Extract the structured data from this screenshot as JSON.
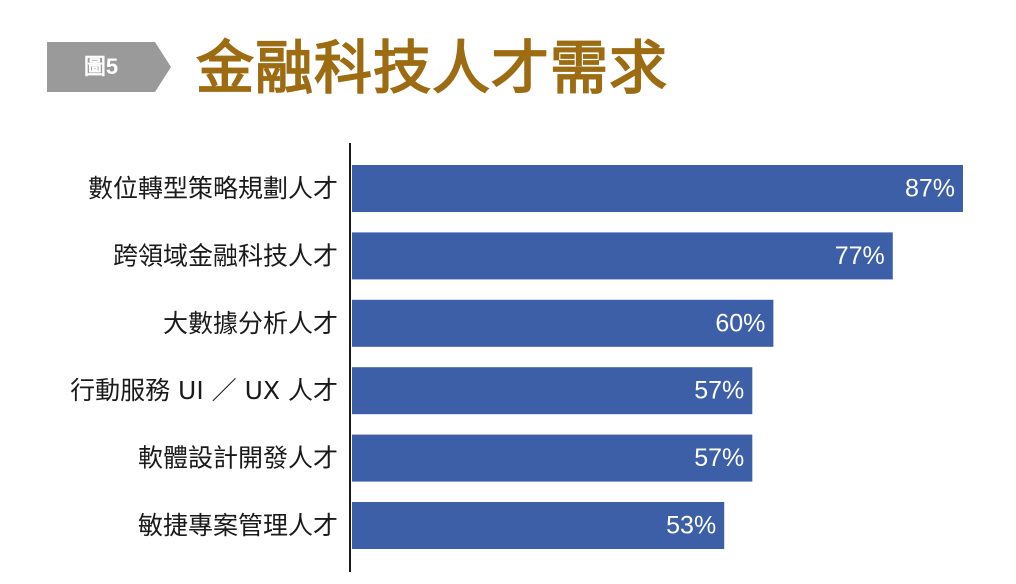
{
  "figure": {
    "badge_label": "圖5",
    "title": "金融科技人才需求",
    "colors": {
      "badge": "#9a9a9a",
      "title": "#9c6b12",
      "bar": "#3c5fa8",
      "axis": "#1a1a1a",
      "value_text": "#ffffff"
    }
  },
  "chart_data": {
    "type": "bar",
    "orientation": "horizontal",
    "title": "金融科技人才需求",
    "xlabel": "",
    "ylabel": "",
    "unit": "%",
    "xlim": [
      0,
      87
    ],
    "grid": false,
    "legend": "none",
    "categories": [
      "數位轉型策略規劃人才",
      "跨領域金融科技人才",
      "大數據分析人才",
      "行動服務 UI ／ UX 人才",
      "軟體設計開發人才",
      "敏捷專案管理人才"
    ],
    "values": [
      87,
      77,
      60,
      57,
      57,
      53
    ],
    "data_labels": [
      "87%",
      "77%",
      "60%",
      "57%",
      "57%",
      "53%"
    ]
  }
}
